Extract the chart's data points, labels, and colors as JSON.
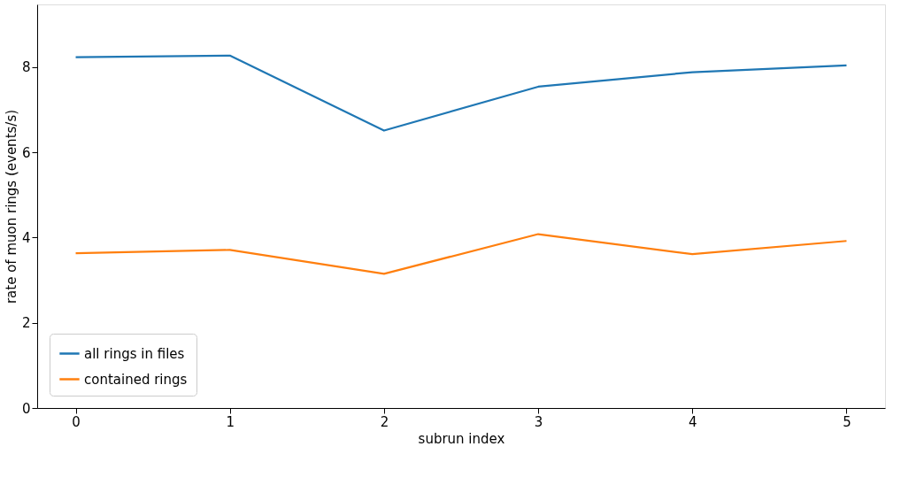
{
  "chart_data": {
    "type": "line",
    "xlabel": "subrun index",
    "ylabel": "rate of muon rings (events/s)",
    "x": [
      0,
      1,
      2,
      3,
      4,
      5
    ],
    "series": [
      {
        "name": "all rings in files",
        "color": "#1f77b4",
        "values": [
          8.23,
          8.27,
          6.51,
          7.54,
          7.88,
          8.04
        ]
      },
      {
        "name": "contained rings",
        "color": "#ff7f0e",
        "values": [
          3.63,
          3.71,
          3.15,
          4.08,
          3.61,
          3.92
        ]
      }
    ],
    "xlim": [
      -0.25,
      5.25
    ],
    "ylim": [
      0,
      9.47
    ],
    "xticks": [
      0,
      1,
      2,
      3,
      4,
      5
    ],
    "yticks": [
      0,
      2,
      4,
      6,
      8
    ],
    "grid": false,
    "legend": "bottom left",
    "marker": "none",
    "line_style": "solid"
  }
}
